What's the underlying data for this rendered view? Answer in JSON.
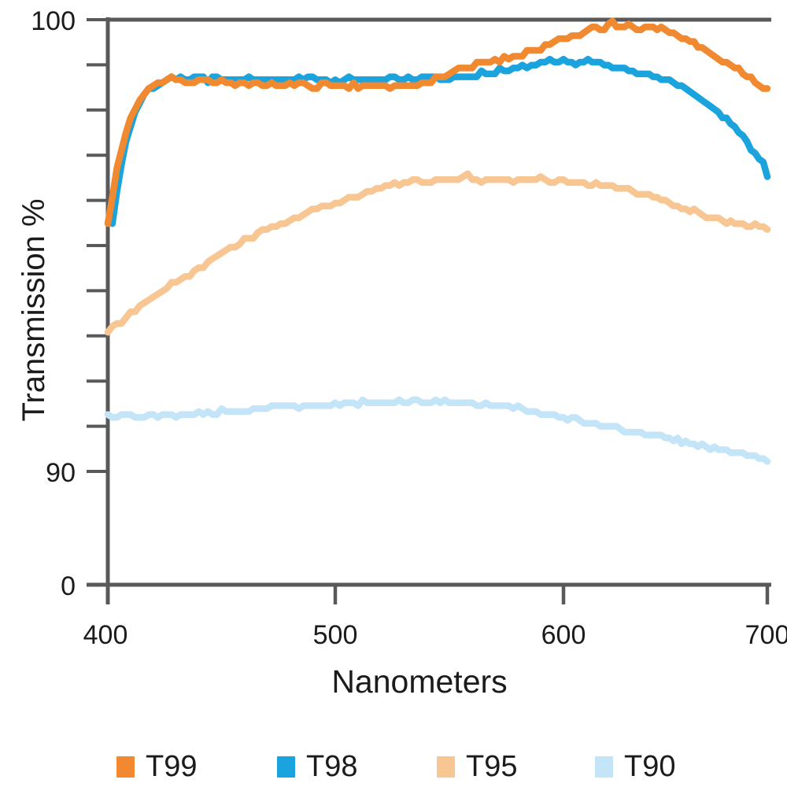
{
  "page": {
    "background": "#ffffff"
  },
  "colors": {
    "axis": "#58595b",
    "text": "#1b1b1b"
  },
  "chart_data": {
    "type": "line",
    "title": "",
    "xlabel": "Nanometers",
    "ylabel": "Transmission %",
    "grid": "off",
    "legend_position": "bottom",
    "x_range": [
      400,
      700
    ],
    "y_display_range": [
      90,
      100
    ],
    "x_tick_values": [
      400,
      500,
      600,
      700
    ],
    "x_tick_labels": [
      "400",
      "500",
      "600",
      "700"
    ],
    "y_axis": {
      "labeled_ticks": [
        {
          "value": 100,
          "label": "100"
        },
        {
          "value": 90,
          "label": "90"
        },
        {
          "value": 0,
          "label": "0"
        }
      ],
      "minor_tick_values": [
        99,
        98,
        97,
        96,
        95,
        94,
        93,
        92,
        91
      ]
    },
    "series": [
      {
        "name": "T99",
        "color": "#F0892F",
        "points": [
          [
            400,
            95.5
          ],
          [
            402,
            96.1
          ],
          [
            404,
            96.7
          ],
          [
            406,
            97.1
          ],
          [
            408,
            97.5
          ],
          [
            410,
            97.8
          ],
          [
            413,
            98.15
          ],
          [
            416,
            98.35
          ],
          [
            419,
            98.5
          ],
          [
            422,
            98.6
          ],
          [
            426,
            98.65
          ],
          [
            430,
            98.72
          ],
          [
            434,
            98.64
          ],
          [
            438,
            98.6
          ],
          [
            442,
            98.68
          ],
          [
            446,
            98.6
          ],
          [
            450,
            98.62
          ],
          [
            455,
            98.55
          ],
          [
            460,
            98.62
          ],
          [
            466,
            98.55
          ],
          [
            472,
            98.6
          ],
          [
            478,
            98.55
          ],
          [
            484,
            98.6
          ],
          [
            490,
            98.52
          ],
          [
            496,
            98.58
          ],
          [
            502,
            98.52
          ],
          [
            508,
            98.56
          ],
          [
            514,
            98.5
          ],
          [
            520,
            98.55
          ],
          [
            526,
            98.5
          ],
          [
            532,
            98.55
          ],
          [
            538,
            98.6
          ],
          [
            544,
            98.7
          ],
          [
            550,
            98.82
          ],
          [
            556,
            98.9
          ],
          [
            562,
            99.0
          ],
          [
            568,
            99.08
          ],
          [
            575,
            99.15
          ],
          [
            582,
            99.25
          ],
          [
            589,
            99.35
          ],
          [
            596,
            99.5
          ],
          [
            602,
            99.6
          ],
          [
            608,
            99.7
          ],
          [
            614,
            99.78
          ],
          [
            619,
            99.8
          ],
          [
            624,
            99.92
          ],
          [
            628,
            99.8
          ],
          [
            632,
            99.85
          ],
          [
            636,
            99.8
          ],
          [
            641,
            99.85
          ],
          [
            646,
            99.8
          ],
          [
            650,
            99.78
          ],
          [
            654,
            99.7
          ],
          [
            658,
            99.62
          ],
          [
            662,
            99.5
          ],
          [
            666,
            99.42
          ],
          [
            670,
            99.3
          ],
          [
            674,
            99.18
          ],
          [
            678,
            99.08
          ],
          [
            682,
            99.0
          ],
          [
            686,
            98.9
          ],
          [
            690,
            98.75
          ],
          [
            694,
            98.6
          ],
          [
            697,
            98.5
          ],
          [
            700,
            98.42
          ]
        ]
      },
      {
        "name": "T98",
        "color": "#1BA3DE",
        "points": [
          [
            402,
            95.5
          ],
          [
            404,
            96.2
          ],
          [
            406,
            96.8
          ],
          [
            408,
            97.3
          ],
          [
            411,
            97.8
          ],
          [
            414,
            98.15
          ],
          [
            417,
            98.4
          ],
          [
            420,
            98.55
          ],
          [
            424,
            98.65
          ],
          [
            428,
            98.72
          ],
          [
            432,
            98.75
          ],
          [
            436,
            98.65
          ],
          [
            440,
            98.72
          ],
          [
            444,
            98.66
          ],
          [
            448,
            98.72
          ],
          [
            453,
            98.68
          ],
          [
            458,
            98.72
          ],
          [
            464,
            98.68
          ],
          [
            470,
            98.72
          ],
          [
            476,
            98.68
          ],
          [
            482,
            98.72
          ],
          [
            488,
            98.7
          ],
          [
            494,
            98.72
          ],
          [
            500,
            98.62
          ],
          [
            505,
            98.72
          ],
          [
            510,
            98.64
          ],
          [
            515,
            98.72
          ],
          [
            520,
            98.66
          ],
          [
            526,
            98.72
          ],
          [
            532,
            98.68
          ],
          [
            538,
            98.72
          ],
          [
            545,
            98.7
          ],
          [
            552,
            98.74
          ],
          [
            559,
            98.78
          ],
          [
            566,
            98.82
          ],
          [
            573,
            98.86
          ],
          [
            580,
            98.92
          ],
          [
            587,
            99.0
          ],
          [
            594,
            99.06
          ],
          [
            600,
            99.1
          ],
          [
            606,
            99.06
          ],
          [
            612,
            99.1
          ],
          [
            617,
            99.05
          ],
          [
            622,
            99.0
          ],
          [
            627,
            98.95
          ],
          [
            632,
            98.85
          ],
          [
            637,
            98.8
          ],
          [
            642,
            98.78
          ],
          [
            647,
            98.72
          ],
          [
            652,
            98.68
          ],
          [
            656,
            98.55
          ],
          [
            660,
            98.45
          ],
          [
            664,
            98.35
          ],
          [
            668,
            98.25
          ],
          [
            672,
            98.1
          ],
          [
            676,
            97.95
          ],
          [
            680,
            97.78
          ],
          [
            684,
            97.58
          ],
          [
            688,
            97.38
          ],
          [
            691,
            97.2
          ],
          [
            694,
            97.05
          ],
          [
            696,
            96.95
          ],
          [
            698,
            96.85
          ],
          [
            700,
            96.55
          ]
        ]
      },
      {
        "name": "T95",
        "color": "#F8C693",
        "points": [
          [
            400,
            93.1
          ],
          [
            405,
            93.3
          ],
          [
            410,
            93.5
          ],
          [
            415,
            93.68
          ],
          [
            420,
            93.85
          ],
          [
            425,
            94.02
          ],
          [
            430,
            94.2
          ],
          [
            435,
            94.35
          ],
          [
            440,
            94.5
          ],
          [
            445,
            94.65
          ],
          [
            450,
            94.8
          ],
          [
            455,
            94.95
          ],
          [
            460,
            95.1
          ],
          [
            465,
            95.22
          ],
          [
            470,
            95.35
          ],
          [
            475,
            95.45
          ],
          [
            480,
            95.55
          ],
          [
            485,
            95.65
          ],
          [
            490,
            95.75
          ],
          [
            495,
            95.85
          ],
          [
            500,
            95.95
          ],
          [
            505,
            96.03
          ],
          [
            510,
            96.1
          ],
          [
            515,
            96.18
          ],
          [
            520,
            96.25
          ],
          [
            525,
            96.32
          ],
          [
            530,
            96.38
          ],
          [
            536,
            96.4
          ],
          [
            542,
            96.44
          ],
          [
            548,
            96.45
          ],
          [
            554,
            96.45
          ],
          [
            558,
            96.56
          ],
          [
            562,
            96.45
          ],
          [
            568,
            96.45
          ],
          [
            574,
            96.46
          ],
          [
            580,
            96.45
          ],
          [
            586,
            96.48
          ],
          [
            592,
            96.44
          ],
          [
            598,
            96.42
          ],
          [
            604,
            96.38
          ],
          [
            610,
            96.35
          ],
          [
            616,
            96.38
          ],
          [
            622,
            96.32
          ],
          [
            628,
            96.28
          ],
          [
            634,
            96.2
          ],
          [
            640,
            96.12
          ],
          [
            646,
            96.05
          ],
          [
            652,
            95.95
          ],
          [
            658,
            95.85
          ],
          [
            664,
            95.78
          ],
          [
            670,
            95.68
          ],
          [
            676,
            95.6
          ],
          [
            682,
            95.52
          ],
          [
            688,
            95.46
          ],
          [
            694,
            95.42
          ],
          [
            700,
            95.38
          ]
        ]
      },
      {
        "name": "T90",
        "color": "#C4E5F7",
        "points": [
          [
            400,
            91.25
          ],
          [
            405,
            91.2
          ],
          [
            410,
            91.25
          ],
          [
            415,
            91.18
          ],
          [
            420,
            91.25
          ],
          [
            425,
            91.2
          ],
          [
            430,
            91.22
          ],
          [
            435,
            91.26
          ],
          [
            440,
            91.3
          ],
          [
            445,
            91.28
          ],
          [
            450,
            91.32
          ],
          [
            455,
            91.3
          ],
          [
            460,
            91.35
          ],
          [
            465,
            91.38
          ],
          [
            470,
            91.42
          ],
          [
            475,
            91.45
          ],
          [
            480,
            91.52
          ],
          [
            484,
            91.42
          ],
          [
            490,
            91.45
          ],
          [
            495,
            91.46
          ],
          [
            500,
            91.48
          ],
          [
            505,
            91.5
          ],
          [
            510,
            91.52
          ],
          [
            515,
            91.55
          ],
          [
            520,
            91.52
          ],
          [
            525,
            91.55
          ],
          [
            530,
            91.5
          ],
          [
            535,
            91.55
          ],
          [
            540,
            91.52
          ],
          [
            545,
            91.55
          ],
          [
            550,
            91.52
          ],
          [
            555,
            91.55
          ],
          [
            560,
            91.5
          ],
          [
            565,
            91.48
          ],
          [
            570,
            91.45
          ],
          [
            575,
            91.42
          ],
          [
            580,
            91.4
          ],
          [
            585,
            91.35
          ],
          [
            590,
            91.3
          ],
          [
            595,
            91.25
          ],
          [
            600,
            91.2
          ],
          [
            606,
            91.15
          ],
          [
            612,
            91.1
          ],
          [
            618,
            91.05
          ],
          [
            624,
            91.0
          ],
          [
            630,
            90.9
          ],
          [
            636,
            90.85
          ],
          [
            642,
            90.8
          ],
          [
            648,
            90.75
          ],
          [
            654,
            90.7
          ],
          [
            660,
            90.65
          ],
          [
            666,
            90.58
          ],
          [
            672,
            90.52
          ],
          [
            678,
            90.48
          ],
          [
            684,
            90.42
          ],
          [
            690,
            90.35
          ],
          [
            695,
            90.3
          ],
          [
            700,
            90.2
          ]
        ]
      }
    ]
  }
}
